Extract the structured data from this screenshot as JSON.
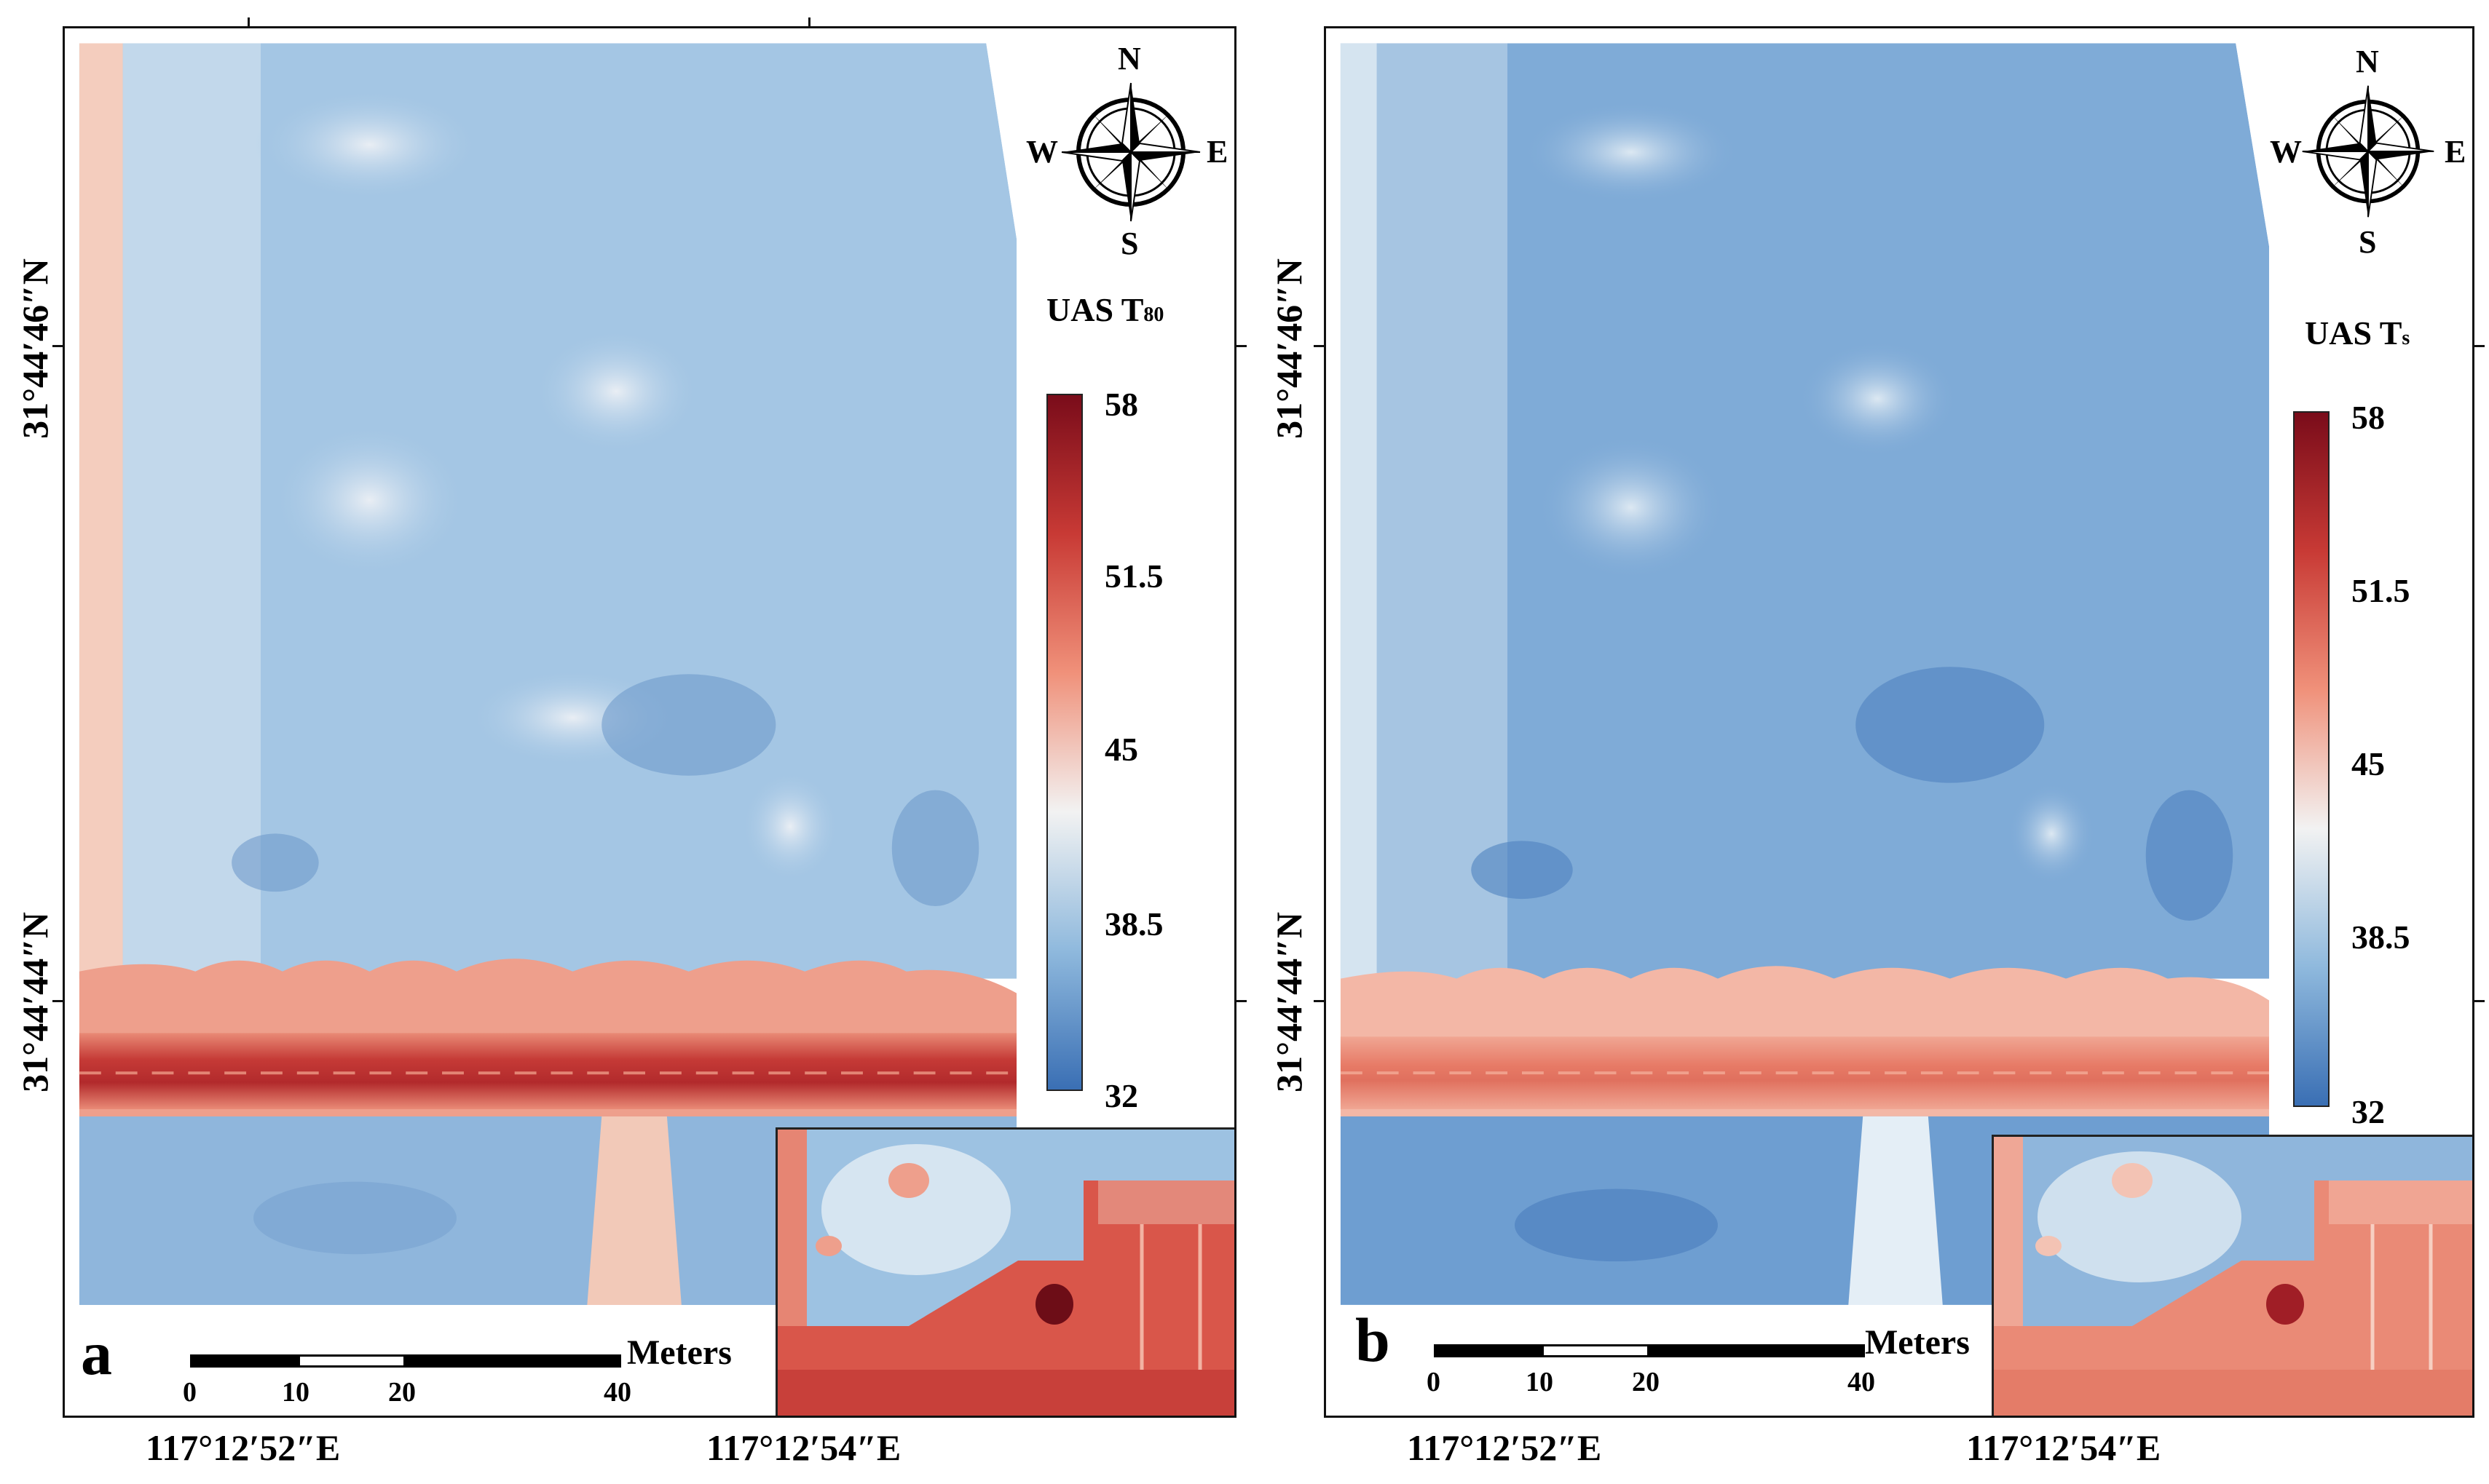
{
  "axes": {
    "lat_top": "31°44′46″N",
    "lat_bottom": "31°44′44″N",
    "lon_left": "117°12′52″E",
    "lon_right": "117°12′54″E"
  },
  "compass": {
    "n": "N",
    "s": "S",
    "e": "E",
    "w": "W"
  },
  "colorbar": {
    "ticks": [
      "58",
      "51.5",
      "45",
      "38.5",
      "32"
    ],
    "min": 32,
    "max": 58,
    "colors": [
      "#3a6fb4",
      "#8fb9dd",
      "#f2f2f2",
      "#f0917a",
      "#c83a35",
      "#7a0c1a"
    ]
  },
  "scalebar": {
    "ticks": [
      "0",
      "10",
      "20",
      "40"
    ],
    "unit": "Meters"
  },
  "panels": [
    {
      "letter": "a",
      "legend_title": "UAS T",
      "legend_sub": "80"
    },
    {
      "letter": "b",
      "legend_title": "UAS T",
      "legend_sub": "s"
    }
  ]
}
